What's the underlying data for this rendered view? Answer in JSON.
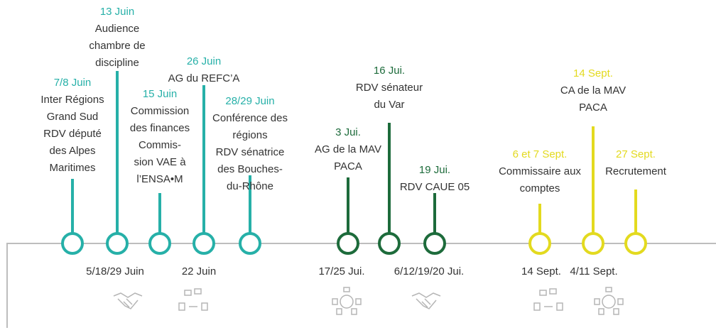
{
  "events": [
    {
      "date": "7/8 Juin",
      "lines": [
        "Inter Régions",
        "Grand Sud",
        "RDV député",
        "des Alpes",
        "Maritimes"
      ],
      "color": "#26b0a8"
    },
    {
      "date": "13 Juin",
      "lines": [
        "Audience",
        "chambre de",
        "discipline"
      ],
      "color": "#26b0a8"
    },
    {
      "date": "15 Juin",
      "lines": [
        "Commission",
        "des finances",
        "Commis-",
        "sion VAE à",
        "l’ENSA•M"
      ],
      "color": "#26b0a8"
    },
    {
      "date": "26 Juin",
      "lines": [
        "AG du REFC’A"
      ],
      "color": "#26b0a8"
    },
    {
      "date": "28/29 Juin",
      "lines": [
        "Conférence des",
        "régions",
        "RDV sénatrice",
        "des Bouches-",
        "du-Rhône"
      ],
      "color": "#26b0a8"
    },
    {
      "date": "3 Jui.",
      "lines": [
        "AG de la MAV",
        "PACA"
      ],
      "color": "#1d6b3b"
    },
    {
      "date": "16 Jui.",
      "lines": [
        "RDV sénateur",
        "du Var"
      ],
      "color": "#1d6b3b"
    },
    {
      "date": "19 Jui.",
      "lines": [
        "RDV CAUE 05"
      ],
      "color": "#1d6b3b"
    },
    {
      "date": "6 et 7 Sept.",
      "lines": [
        "Commissaire aux",
        "comptes"
      ],
      "color": "#e3da1f"
    },
    {
      "date": "14 Sept.",
      "lines": [
        "CA de la MAV",
        "PACA"
      ],
      "color": "#e3da1f"
    },
    {
      "date": "27 Sept.",
      "lines": [
        "Recrutement"
      ],
      "color": "#e3da1f"
    }
  ],
  "bottom_labels": [
    "5/18/29 Juin",
    "22 Juin",
    "17/25 Jui.",
    "6/12/19/20 Jui.",
    "14 Sept.",
    "4/11 Sept."
  ]
}
